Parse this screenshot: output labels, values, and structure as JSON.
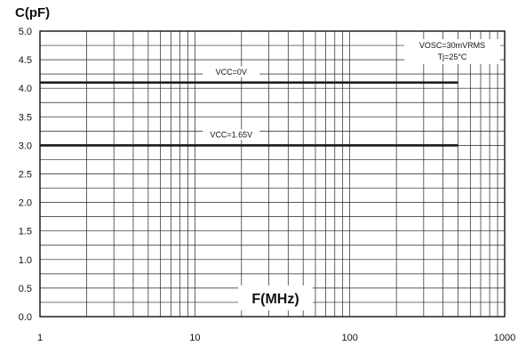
{
  "chart_data": {
    "type": "line",
    "title": "",
    "ylabel": "C(pF)",
    "xlabel": "F(MHz)",
    "x_scale": "log",
    "xlim": [
      1,
      1000
    ],
    "ylim": [
      0,
      5
    ],
    "x_ticks": [
      "1",
      "10",
      "100",
      "1000"
    ],
    "y_ticks": [
      "0.0",
      "0.5",
      "1.0",
      "1.5",
      "2.0",
      "2.5",
      "3.0",
      "3.5",
      "4.0",
      "4.5",
      "5.0"
    ],
    "grid": true,
    "series": [
      {
        "name": "VCC=0V",
        "x": [
          1,
          500
        ],
        "y": [
          4.1,
          4.1
        ]
      },
      {
        "name": "VCC=1.65V",
        "x": [
          1,
          500
        ],
        "y": [
          3.0,
          3.0
        ]
      }
    ],
    "conditions": [
      "VOSC=30mVRMS",
      "Tj=25°C"
    ]
  }
}
